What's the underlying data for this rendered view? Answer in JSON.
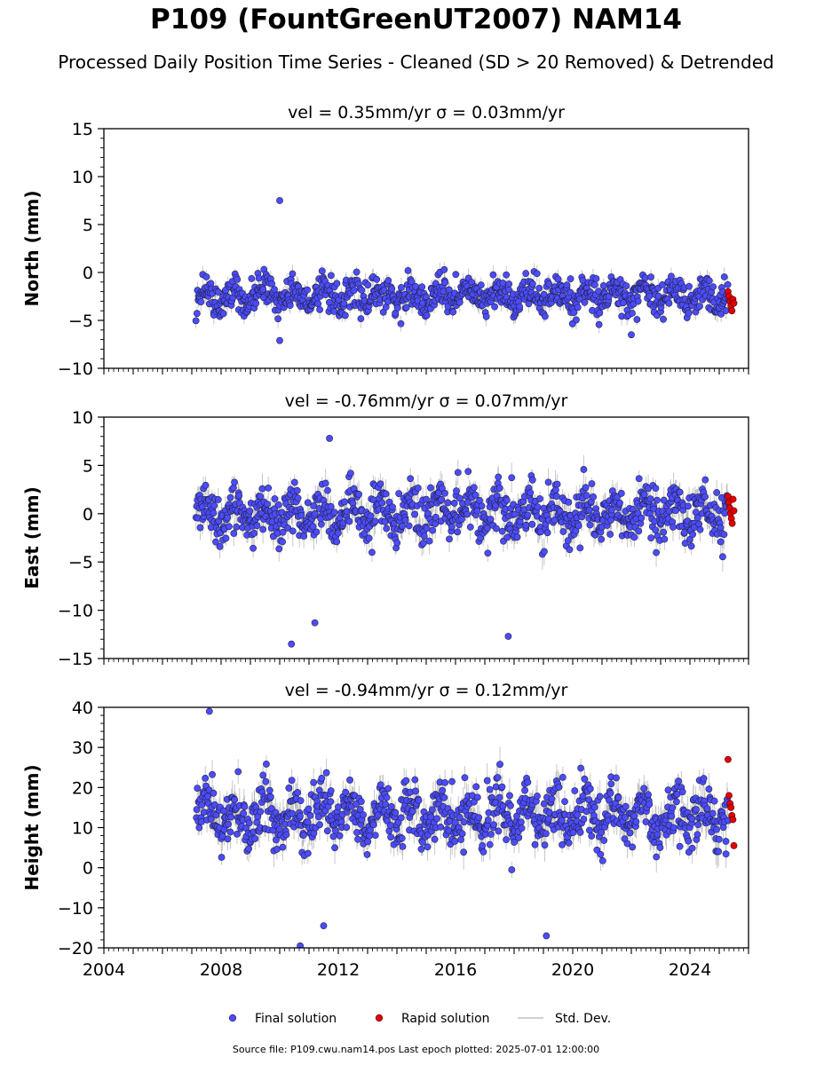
{
  "figure": {
    "title": "P109 (FountGreenUT2007) NAM14",
    "subtitle": "Processed Daily Position Time Series - Cleaned (SD > 20 Removed) & Detrended",
    "footer": "Source file: P109.cwu.nam14.pos  Last epoch plotted: 2025-07-01 12:00:00"
  },
  "legend": {
    "final_label": "Final solution",
    "rapid_label": "Rapid solution",
    "std_label": "Std. Dev."
  },
  "colors": {
    "final": "#4c4cff",
    "rapid": "#e00000",
    "std": "#999999"
  },
  "chart_data": [
    {
      "type": "scatter",
      "title": "vel = 0.35mm/yr   σ = 0.03mm/yr",
      "ylabel": "North (mm)",
      "xlim": [
        2004,
        2026
      ],
      "ylim": [
        -10,
        15
      ],
      "yticks": [
        15,
        10,
        5,
        0,
        -5,
        -10
      ],
      "ytick_labels": [
        "15",
        "10",
        "5",
        "0",
        "−5",
        "−10"
      ],
      "grid": false,
      "series": [
        {
          "name": "Final solution",
          "x_range": [
            2007.15,
            2025.3
          ],
          "mean": -2.4,
          "scatter": 1.3,
          "outliers": [
            {
              "x": 2010.0,
              "y": 7.5
            },
            {
              "x": 2010.0,
              "y": -7.1
            },
            {
              "x": 2022.0,
              "y": -6.5
            }
          ]
        },
        {
          "name": "Rapid solution",
          "x_range": [
            2025.3,
            2025.5
          ],
          "values": [
            -2.0,
            -2.5,
            -3.0,
            -3.5,
            -4.0,
            -2.8,
            -3.2
          ]
        }
      ]
    },
    {
      "type": "scatter",
      "title": "vel = -0.76mm/yr   σ = 0.07mm/yr",
      "ylabel": "East (mm)",
      "xlim": [
        2004,
        2026
      ],
      "ylim": [
        -15,
        10
      ],
      "yticks": [
        10,
        5,
        0,
        -5,
        -10,
        -15
      ],
      "ytick_labels": [
        "10",
        "5",
        "0",
        "−5",
        "−10",
        "−15"
      ],
      "grid": false,
      "series": [
        {
          "name": "Final solution",
          "x_range": [
            2007.15,
            2025.3
          ],
          "mean": 0.0,
          "scatter": 2.0,
          "outliers": [
            {
              "x": 2010.4,
              "y": -13.5
            },
            {
              "x": 2011.2,
              "y": -11.3
            },
            {
              "x": 2017.8,
              "y": -12.7
            },
            {
              "x": 2011.7,
              "y": 7.8
            }
          ]
        },
        {
          "name": "Rapid solution",
          "x_range": [
            2025.3,
            2025.5
          ],
          "values": [
            1.8,
            1.2,
            0.6,
            0.0,
            -0.5,
            -1.0,
            1.5,
            0.3
          ]
        }
      ]
    },
    {
      "type": "scatter",
      "title": "vel = -0.94mm/yr   σ = 0.12mm/yr",
      "ylabel": "Height (mm)",
      "xlim": [
        2004,
        2026
      ],
      "ylim": [
        -20,
        40
      ],
      "yticks": [
        40,
        30,
        20,
        10,
        0,
        -10,
        -20
      ],
      "ytick_labels": [
        "40",
        "30",
        "20",
        "10",
        "0",
        "−10",
        "−20"
      ],
      "xticks": [
        2004,
        2008,
        2012,
        2016,
        2020,
        2024
      ],
      "xtick_labels": [
        "2004",
        "2008",
        "2012",
        "2016",
        "2020",
        "2024"
      ],
      "grid": false,
      "series": [
        {
          "name": "Final solution",
          "x_range": [
            2007.15,
            2025.3
          ],
          "mean": 13.0,
          "scatter": 5.5,
          "outliers": [
            {
              "x": 2007.6,
              "y": 39.0
            },
            {
              "x": 2010.7,
              "y": -19.5
            },
            {
              "x": 2019.1,
              "y": -17.0
            },
            {
              "x": 2011.5,
              "y": -14.5
            }
          ]
        },
        {
          "name": "Rapid solution",
          "x_range": [
            2025.3,
            2025.5
          ],
          "values": [
            27.0,
            18.0,
            16.0,
            15.0,
            13.0,
            12.0,
            5.5
          ]
        }
      ]
    }
  ]
}
